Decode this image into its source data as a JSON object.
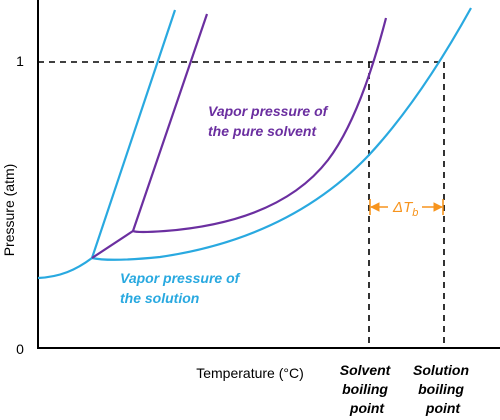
{
  "chart_data": {
    "type": "line",
    "title": "",
    "xlabel": "Temperature (°C)",
    "ylabel": "Pressure (atm)",
    "yticks": [
      "0",
      "1"
    ],
    "ylim": [
      0,
      1.2
    ],
    "grid": false,
    "colors": {
      "solvent": "#6B2FA0",
      "solution": "#29A9E0",
      "delta": "#F7941D",
      "axis": "#000000"
    },
    "series": [
      {
        "name": "Vapor pressure of the pure solvent",
        "color": "#6B2FA0"
      },
      {
        "name": "Vapor pressure of the solution",
        "color": "#29A9E0"
      }
    ],
    "annotations": {
      "solvent_label": [
        "Vapor pressure of",
        "the pure solvent"
      ],
      "solution_label": [
        "Vapor pressure of",
        "the solution"
      ],
      "delta_tb": {
        "prefix": "ΔT",
        "subscript": "b"
      },
      "solvent_bp": [
        "Solvent",
        "boiling",
        "point"
      ],
      "solution_bp": [
        "Solution",
        "boiling",
        "point"
      ],
      "reference_pressure_atm": 1
    }
  }
}
